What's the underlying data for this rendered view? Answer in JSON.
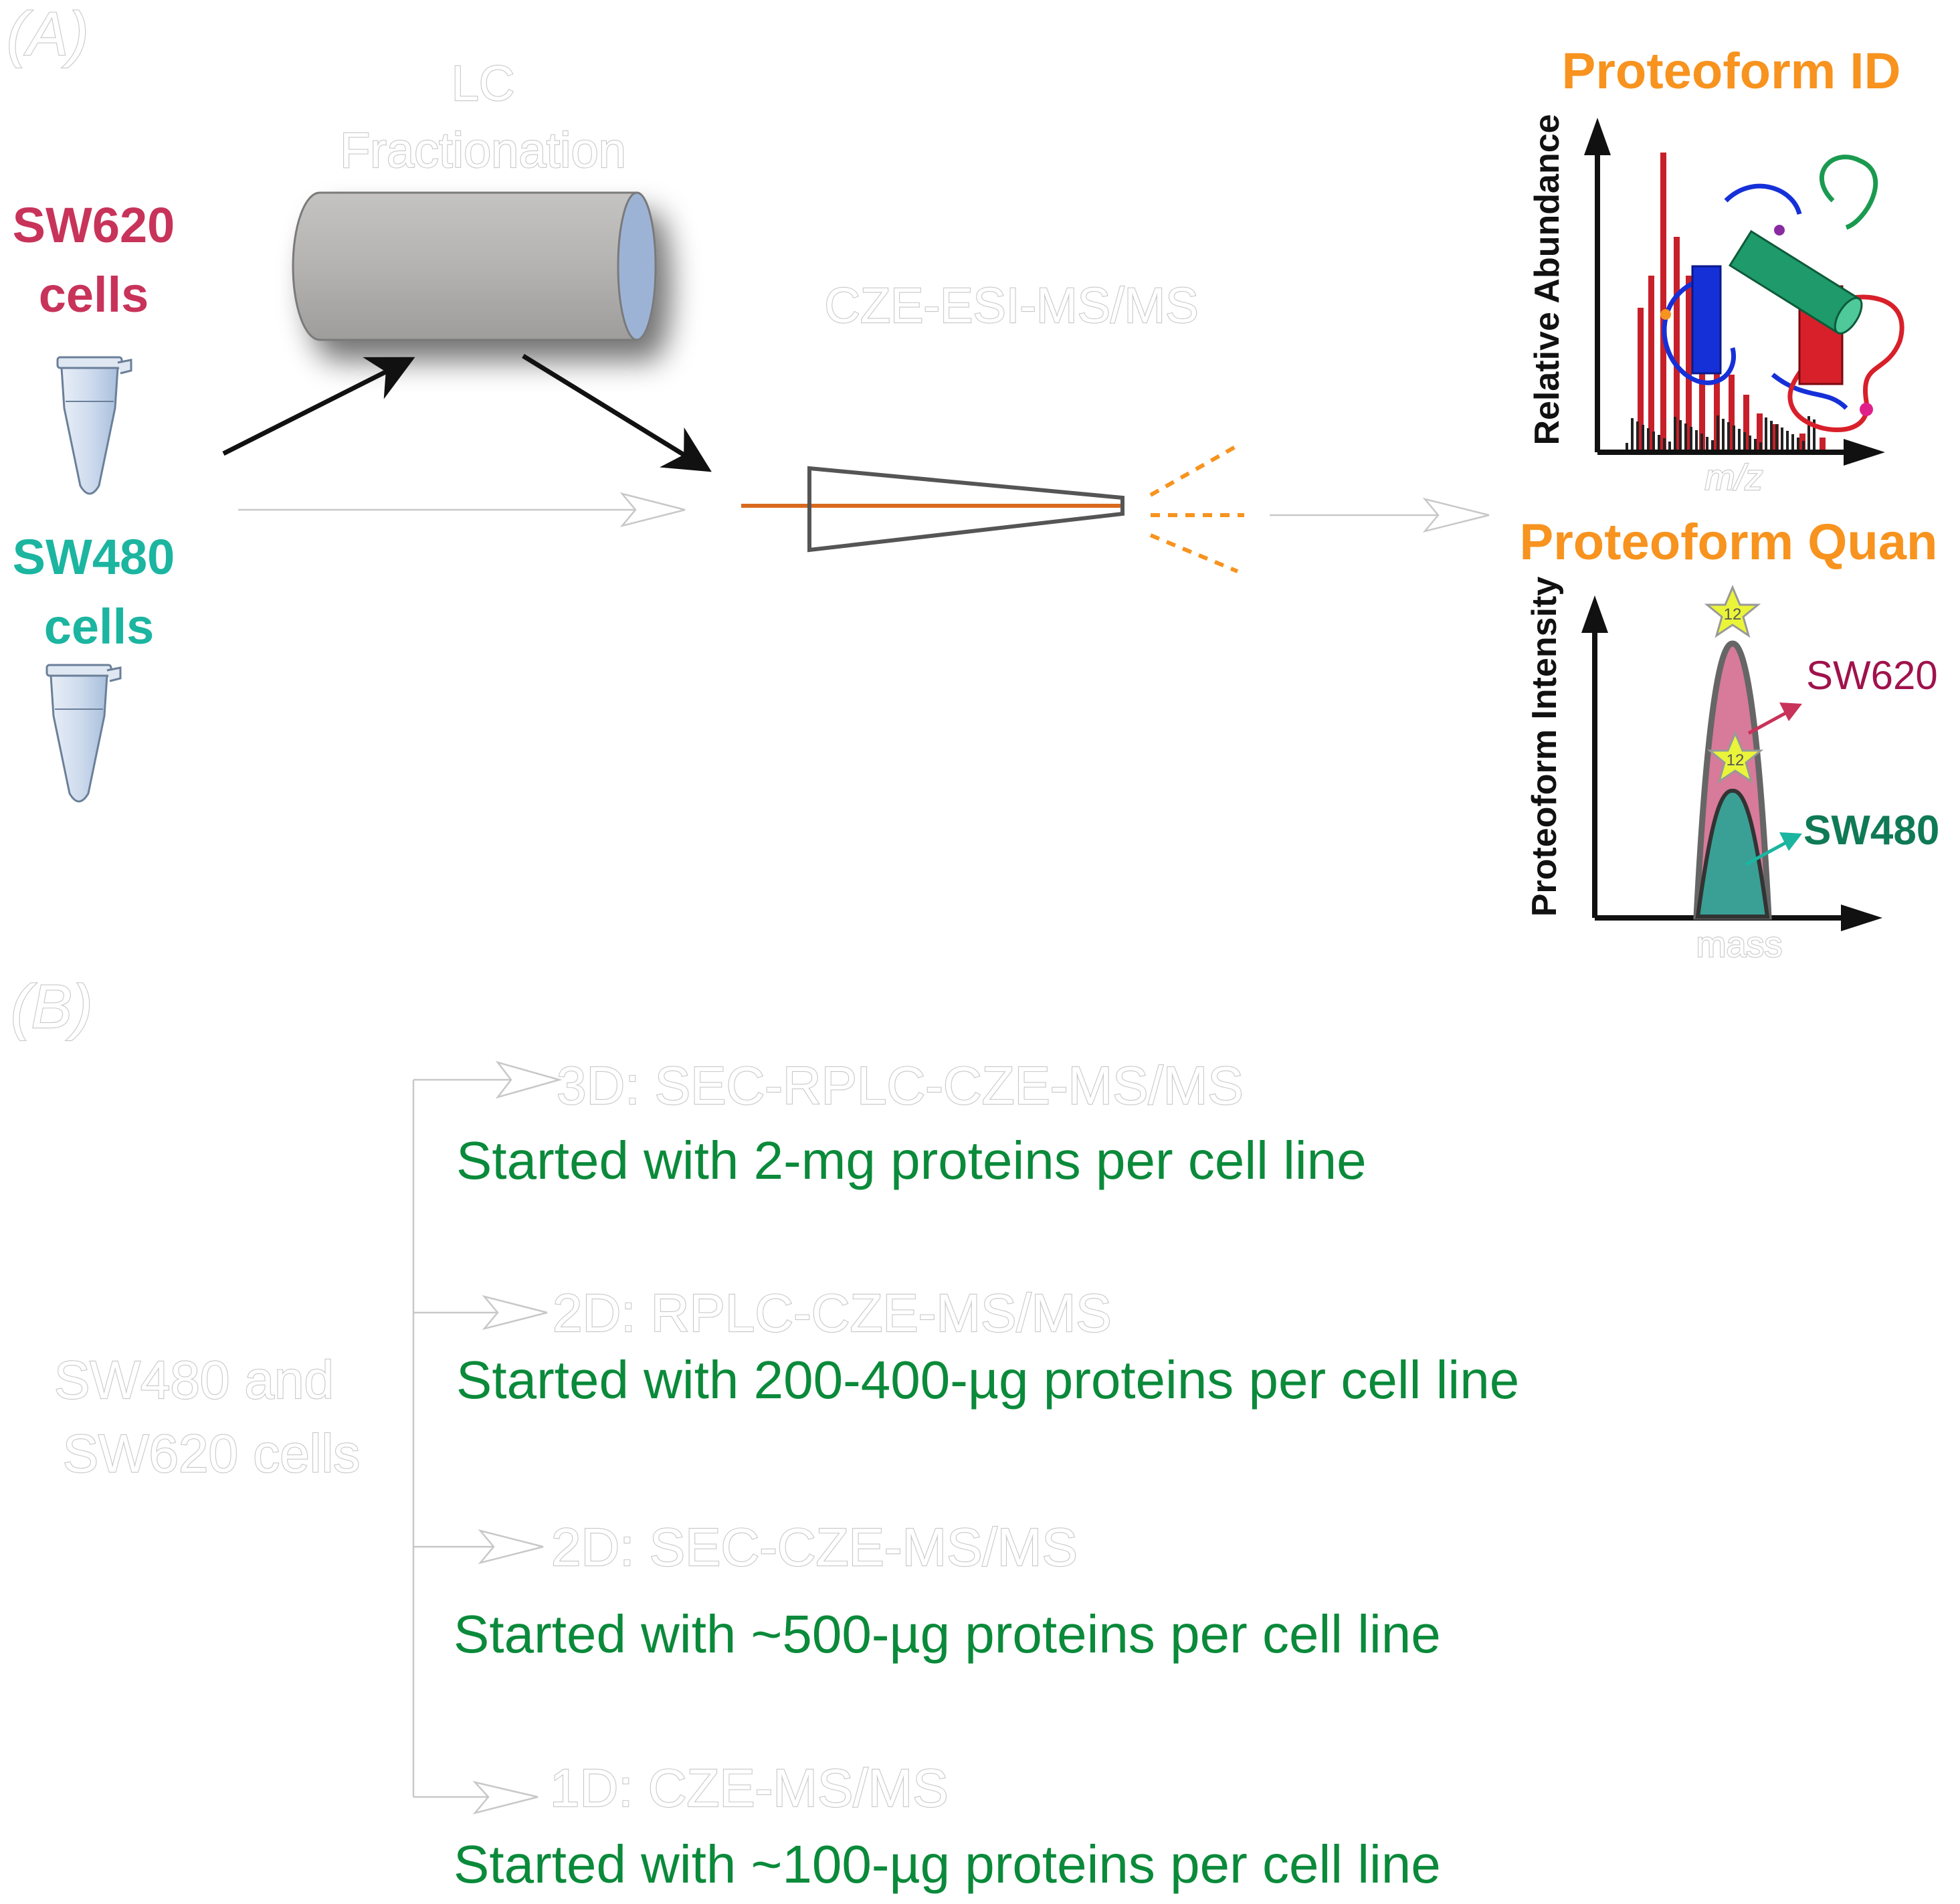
{
  "panelA": {
    "label": "(A)",
    "sw620": {
      "line1": "SW620",
      "line2": "cells",
      "color": "#c8335a"
    },
    "sw480": {
      "line1": "SW480",
      "line2": "cells",
      "color": "#1bb5a0"
    },
    "lc": {
      "line1": "LC",
      "line2": "Fractionation"
    },
    "cze_label": "CZE-ESI-MS/MS",
    "proteoform_id": {
      "title": "Proteoform ID",
      "ylabel": "Relative Abundance",
      "xlabel": "m/z",
      "color": "#f7931e"
    },
    "proteoform_quan": {
      "title": "Proteoform Quan",
      "ylabel": "Proteoform Intensity",
      "xlabel": "mass",
      "sw620_label": "SW620",
      "sw480_label": "SW480",
      "color": "#f7931e",
      "sw620_color": "#a0124c",
      "sw480_color": "#0f7a55"
    }
  },
  "panelB": {
    "label": "(B)",
    "source_line1": "SW480 and",
    "source_line2": "SW620 cells",
    "text_color": "#0a8a3a",
    "strategies": [
      {
        "name": "3D: SEC-RPLC-CZE-MS/MS",
        "note": "Started with 2-mg proteins per cell line"
      },
      {
        "name": "2D: RPLC-CZE-MS/MS",
        "note": "Started with 200-400-µg proteins per cell line"
      },
      {
        "name": "2D: SEC-CZE-MS/MS",
        "note": "Started with ~500-µg proteins per cell line"
      },
      {
        "name": "1D: CZE-MS/MS",
        "note": "Started with ~100-µg proteins per cell line"
      }
    ]
  }
}
